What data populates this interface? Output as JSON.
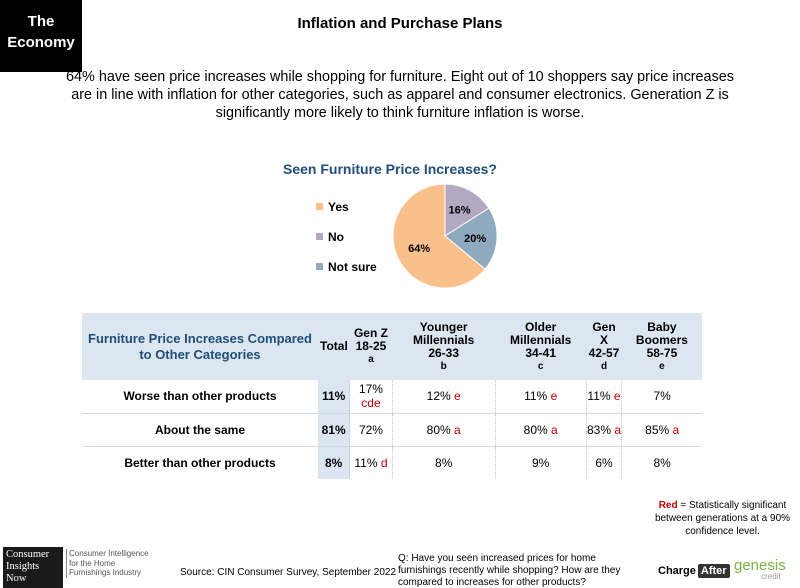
{
  "section_tag": "The Economy",
  "title": "Inflation and Purchase Plans",
  "summary": "64% have seen price increases while shopping for furniture. Eight out of 10 shoppers say price increases are in line with inflation for other categories, such as apparel and consumer electronics. Generation Z is significantly more likely to think furniture inflation is worse.",
  "chart_data": [
    {
      "type": "pie",
      "title": "Seen Furniture Price Increases?",
      "legend_position": "left",
      "categories": [
        "Yes",
        "No",
        "Not sure"
      ],
      "values": [
        64,
        16,
        20
      ],
      "labels": [
        "64%",
        "16%",
        "20%"
      ],
      "colors": [
        "#f9c08b",
        "#b3a7c2",
        "#8faabf"
      ]
    },
    {
      "type": "table",
      "header": {
        "row_label": "Furniture Price Increases Compared to Other Categories",
        "columns": [
          {
            "name": "Total",
            "ages": "",
            "letter": ""
          },
          {
            "name": "Gen Z",
            "ages": "18-25",
            "letter": "a"
          },
          {
            "name": "Younger Millennials",
            "ages": "26-33",
            "letter": "b"
          },
          {
            "name": "Older Millennials",
            "ages": "34-41",
            "letter": "c"
          },
          {
            "name": "Gen X",
            "ages": "42-57",
            "letter": "d"
          },
          {
            "name": "Baby Boomers",
            "ages": "58-75",
            "letter": "e"
          }
        ]
      },
      "rows": [
        {
          "label": "Worse than other products",
          "cells": [
            {
              "value": "11%",
              "sig": ""
            },
            {
              "value": "17%",
              "sig": "cde"
            },
            {
              "value": "12%",
              "sig": "e"
            },
            {
              "value": "11%",
              "sig": "e"
            },
            {
              "value": "11%",
              "sig": "e"
            },
            {
              "value": "7%",
              "sig": ""
            }
          ]
        },
        {
          "label": "About the same",
          "cells": [
            {
              "value": "81%",
              "sig": ""
            },
            {
              "value": "72%",
              "sig": ""
            },
            {
              "value": "80%",
              "sig": "a"
            },
            {
              "value": "80%",
              "sig": "a"
            },
            {
              "value": "83%",
              "sig": "a"
            },
            {
              "value": "85%",
              "sig": "a"
            }
          ]
        },
        {
          "label": "Better than other products",
          "cells": [
            {
              "value": "8%",
              "sig": ""
            },
            {
              "value": "11%",
              "sig": "d"
            },
            {
              "value": "8%",
              "sig": ""
            },
            {
              "value": "9%",
              "sig": ""
            },
            {
              "value": "6%",
              "sig": ""
            },
            {
              "value": "8%",
              "sig": ""
            }
          ]
        }
      ],
      "sig_color": "#c00000"
    }
  ],
  "footnote": {
    "red_word": "Red",
    "text": " = Statistically significant between generations at a 90% confidence level."
  },
  "footer": {
    "cin_logo": "Consumer Insights Now",
    "cin_tagline": "Consumer Intelligence for the Home Furnishings Industry",
    "source": "Source: CIN Consumer Survey, September 2022",
    "question": "Q: Have you seen increased prices for home furnishings recently while shopping? How are they compared to increases for other products?",
    "charge_logo": "Charge",
    "charge_logo_badge": "After",
    "genesis_logo": "genesis",
    "genesis_logo_sub": "credit"
  }
}
